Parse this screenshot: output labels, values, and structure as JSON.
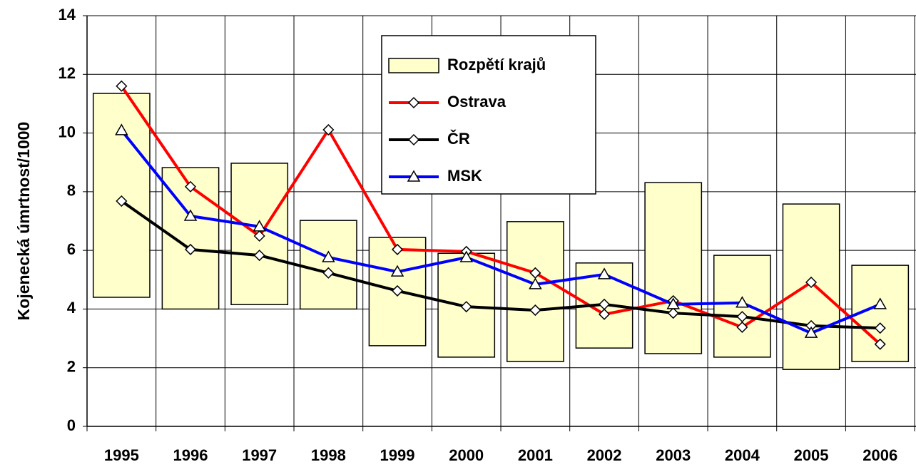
{
  "chart_data": {
    "type": "range_bar_line",
    "y_label": "Kojenecká úmrtnost/1000",
    "categories": [
      "1995",
      "1996",
      "1997",
      "1998",
      "1999",
      "2000",
      "2001",
      "2002",
      "2003",
      "2004",
      "2005",
      "2006"
    ],
    "ylim": [
      0,
      14
    ],
    "yticks": [
      0,
      2,
      4,
      6,
      8,
      10,
      12,
      14
    ],
    "grid": true,
    "legend": "upper center",
    "series": [
      {
        "name": "Rozpětí krajů",
        "type": "range",
        "color": "#ffffcc",
        "low": [
          4.4,
          4.0,
          4.15,
          4.0,
          2.75,
          2.36,
          2.21,
          2.67,
          2.48,
          2.36,
          1.94,
          2.21
        ],
        "high": [
          11.35,
          8.82,
          8.97,
          7.02,
          6.44,
          5.9,
          6.98,
          5.57,
          8.31,
          5.83,
          7.58,
          5.49
        ]
      },
      {
        "name": "Ostrava",
        "type": "line",
        "marker": "diamond",
        "color": "#ff0000",
        "values": [
          11.6,
          8.17,
          6.49,
          10.11,
          6.03,
          5.96,
          5.23,
          3.82,
          4.28,
          3.38,
          4.91,
          2.8
        ]
      },
      {
        "name": "ČR",
        "type": "line",
        "marker": "diamond",
        "color": "#000000",
        "values": [
          7.68,
          6.03,
          5.83,
          5.23,
          4.62,
          4.08,
          3.96,
          4.16,
          3.86,
          3.74,
          3.43,
          3.35
        ]
      },
      {
        "name": "MSK",
        "type": "line",
        "marker": "triangle",
        "color": "#0000ff",
        "values": [
          10.09,
          7.17,
          6.81,
          5.76,
          5.27,
          5.76,
          4.84,
          5.18,
          4.16,
          4.21,
          3.18,
          4.16
        ]
      }
    ]
  }
}
